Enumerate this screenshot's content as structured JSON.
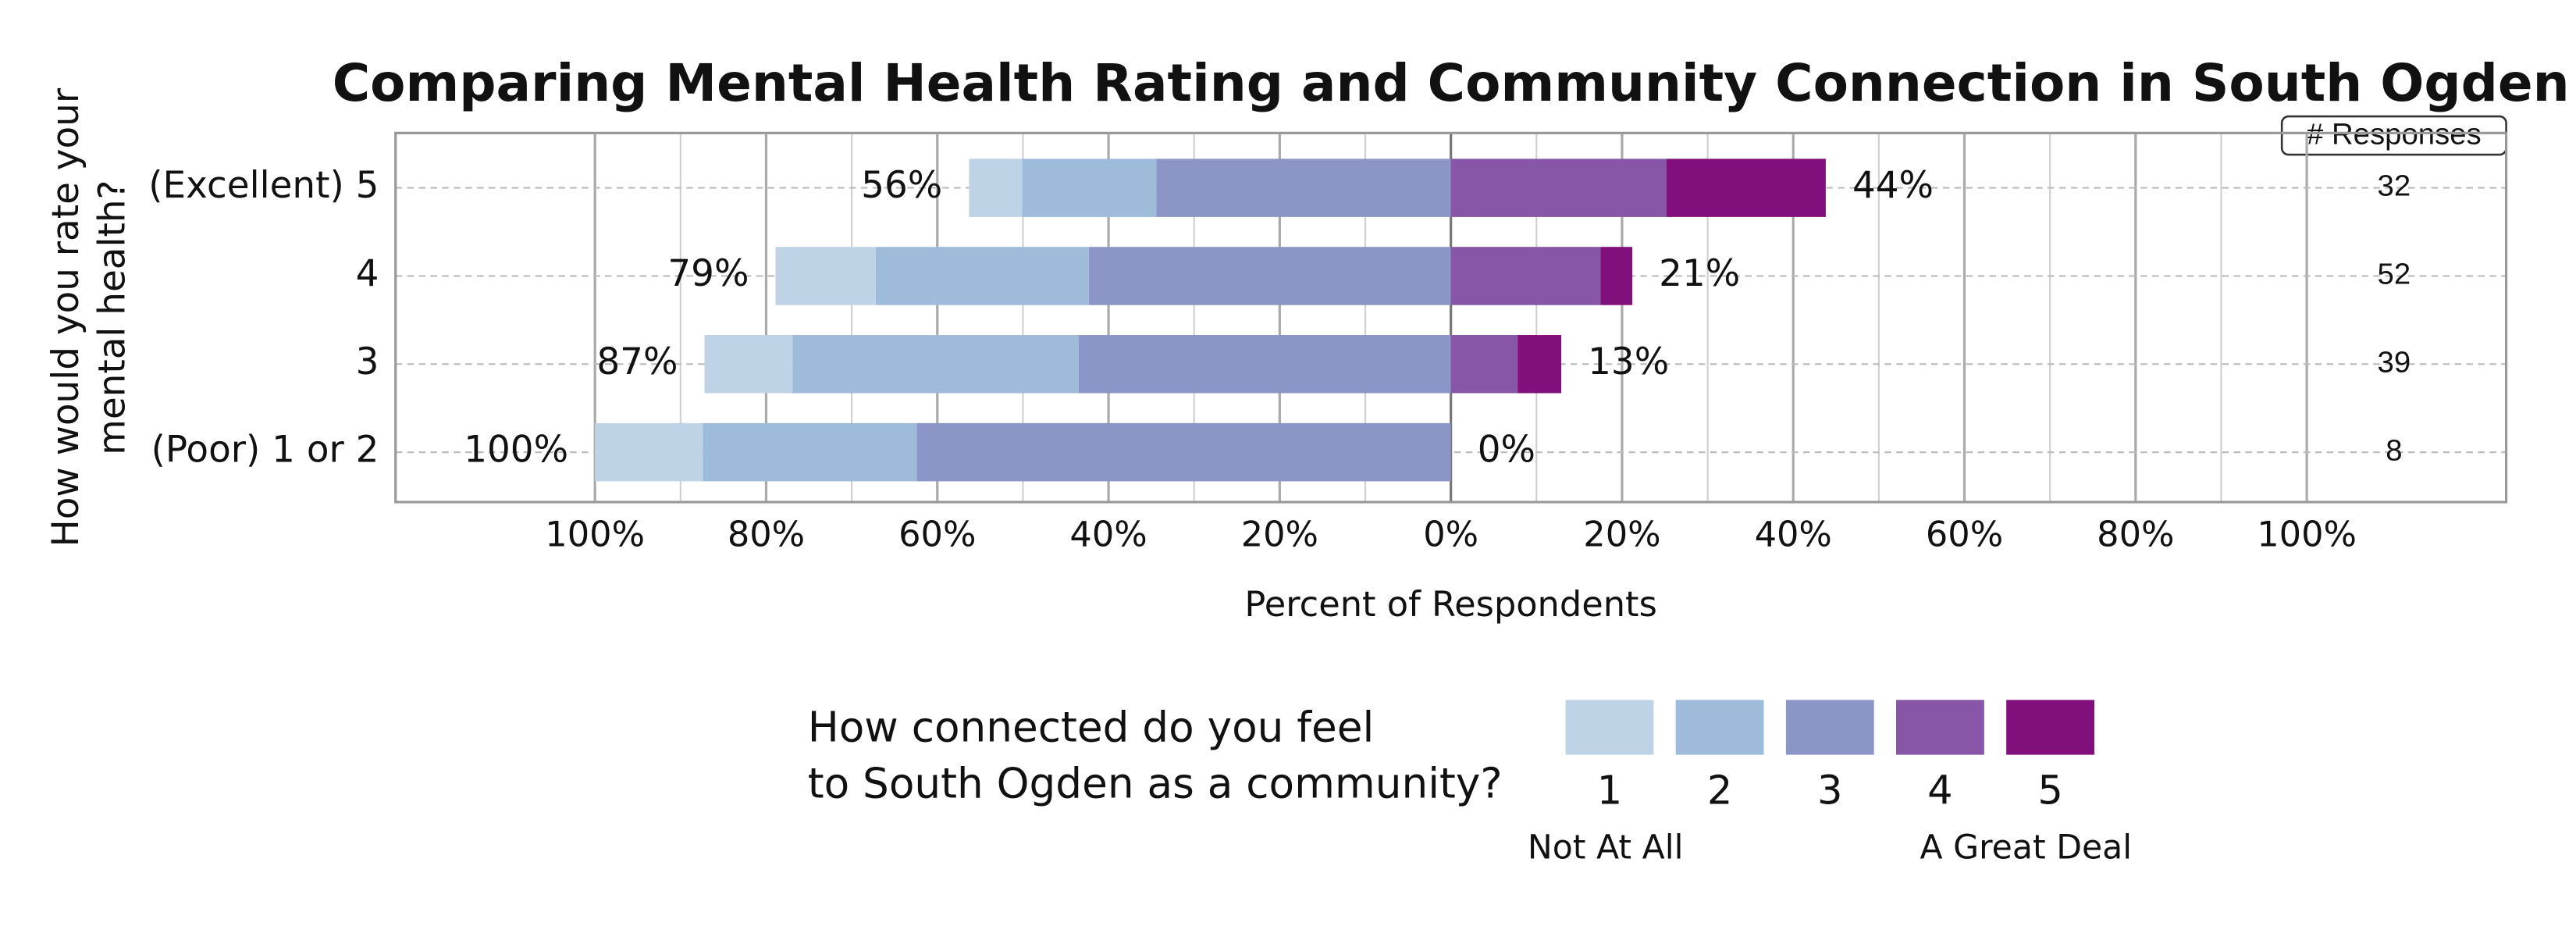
{
  "chart_data": {
    "type": "diverging-bar",
    "title": "Comparing Mental Health Rating and Community Connection in South Ogden",
    "x_label": "Percent of Respondents",
    "y_label": [
      "How would you rate your",
      "mental health?"
    ],
    "categories": [
      "(Excellent) 5",
      "4",
      "3",
      "(Poor) 1 or 2"
    ],
    "series": [
      {
        "name": "1",
        "color": "#bfd3e6",
        "direction": "left",
        "values": [
          6.2,
          11.7,
          10.3,
          12.6
        ]
      },
      {
        "name": "2",
        "color": "#9ebcda",
        "direction": "left",
        "values": [
          15.7,
          24.9,
          33.4,
          25
        ]
      },
      {
        "name": "3",
        "color": "#8c96c6",
        "direction": "left",
        "values": [
          34.4,
          42.3,
          43.5,
          62.4
        ]
      },
      {
        "name": "4",
        "color": "#8856a7",
        "direction": "right",
        "values": [
          25.2,
          17.5,
          7.8,
          0
        ]
      },
      {
        "name": "5",
        "color": "#810f7c",
        "direction": "right",
        "values": [
          18.6,
          3.7,
          5.1,
          0
        ]
      }
    ],
    "left_totals": [
      56,
      79,
      87,
      100
    ],
    "left_total_labels": [
      "56%",
      "79%",
      "87%",
      "100%"
    ],
    "right_totals": [
      44,
      21,
      13,
      0
    ],
    "right_total_labels": [
      "44%",
      "21%",
      "13%",
      "0%"
    ],
    "responses_title": "# Responses",
    "responses": [
      32,
      52,
      39,
      8
    ],
    "xlim": [
      -123.3,
      123.3
    ],
    "xticks": [
      {
        "value": -100,
        "label": "100%"
      },
      {
        "value": -80,
        "label": "80%"
      },
      {
        "value": -60,
        "label": "60%"
      },
      {
        "value": -40,
        "label": "40%"
      },
      {
        "value": -20,
        "label": "20%"
      },
      {
        "value": 0,
        "label": "0%"
      },
      {
        "value": 20,
        "label": "20%"
      },
      {
        "value": 40,
        "label": "40%"
      },
      {
        "value": 60,
        "label": "60%"
      },
      {
        "value": 80,
        "label": "80%"
      },
      {
        "value": 100,
        "label": "100%"
      }
    ],
    "minor_xticks": [
      -90,
      -70,
      -50,
      -30,
      -10,
      10,
      30,
      50,
      70,
      90
    ],
    "grid": true,
    "legend_title": [
      "How connected do you feel",
      "to South Ogden as a community?"
    ],
    "legend_low": "Not At All",
    "legend_high": "A Great Deal"
  }
}
